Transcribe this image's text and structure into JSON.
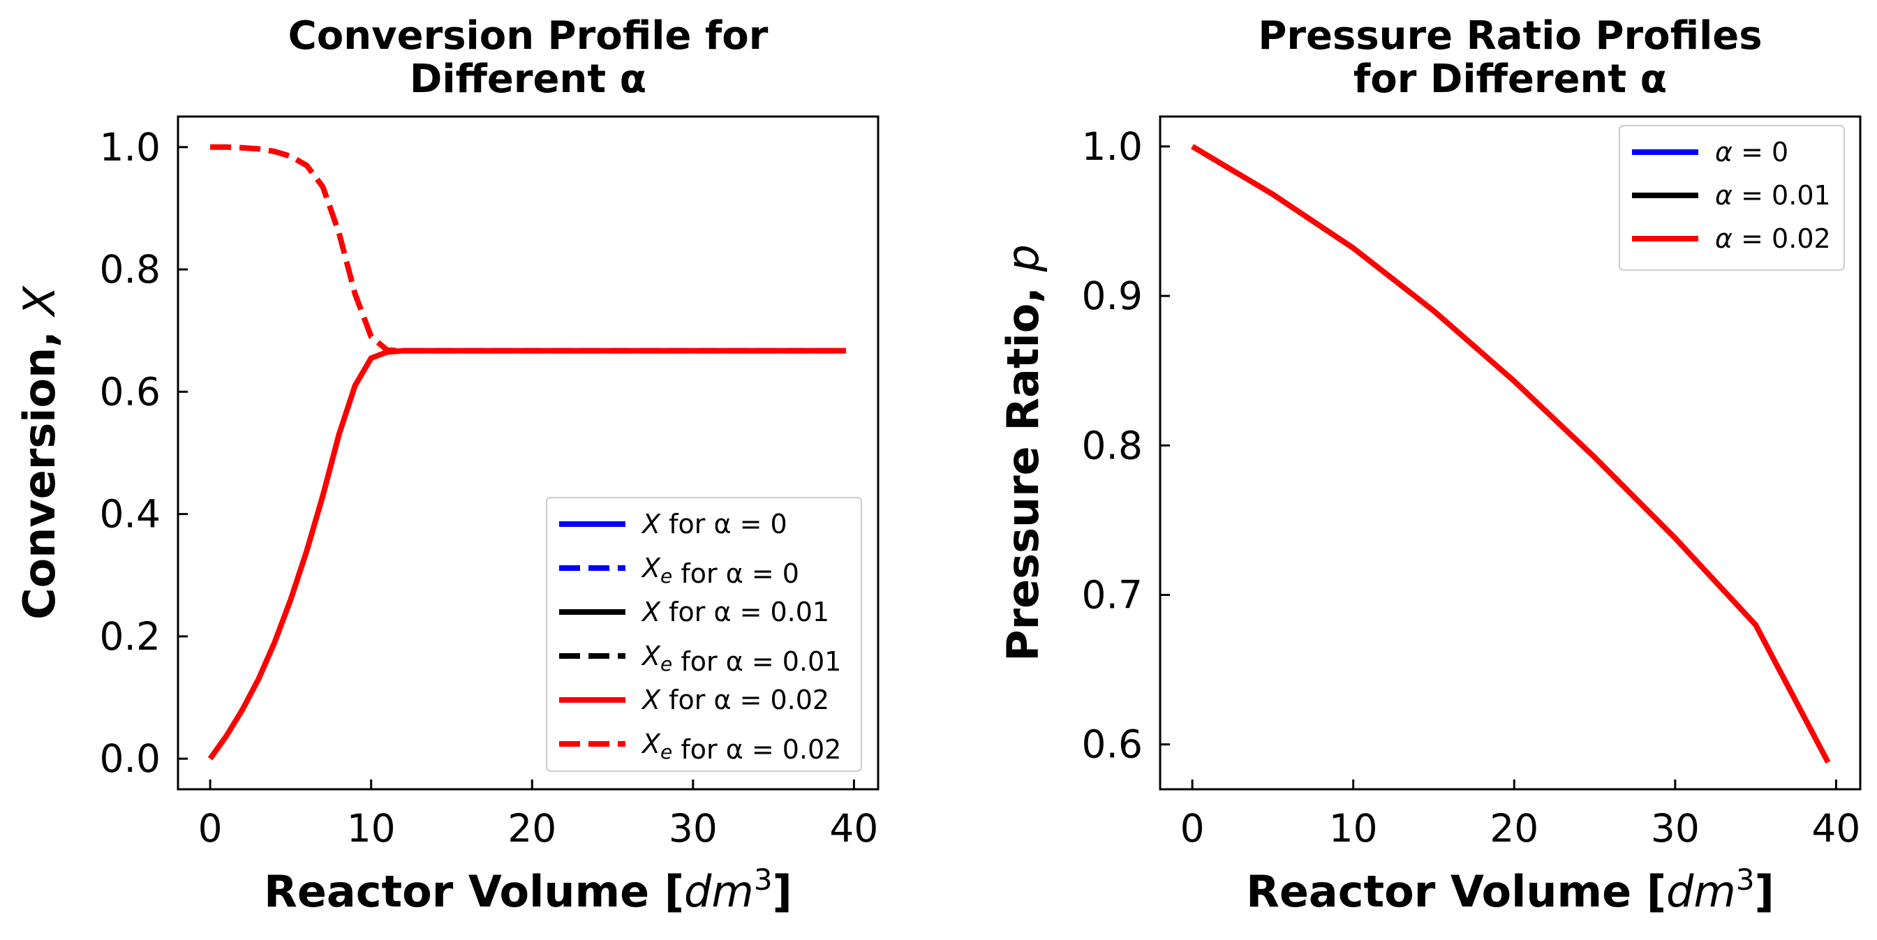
{
  "figure": {
    "background": "#ffffff"
  },
  "chart_data": [
    {
      "type": "line",
      "title": [
        "Conversion Profile for",
        "Different α"
      ],
      "xlabel": "Reactor Volume [dm³]",
      "ylabel": "Conversion, X",
      "xlim": [
        -2,
        41.5
      ],
      "ylim": [
        -0.05,
        1.05
      ],
      "xticks": [
        0,
        10,
        20,
        30,
        40
      ],
      "yticks": [
        0.0,
        0.2,
        0.4,
        0.6,
        0.8,
        1.0
      ],
      "grid": false,
      "legend_position": "lower-right",
      "series": [
        {
          "name": "X for α = 0",
          "color": "#0000ff",
          "style": "solid",
          "legend_only": true
        },
        {
          "name": "Xe for α = 0",
          "color": "#0000ff",
          "style": "dashed",
          "legend_only": true
        },
        {
          "name": "X for α = 0.01",
          "color": "#000000",
          "style": "solid",
          "legend_only": true
        },
        {
          "name": "Xe for α = 0.01",
          "color": "#000000",
          "style": "dashed",
          "legend_only": true
        },
        {
          "name": "X for α = 0.02",
          "color": "#ff0000",
          "style": "solid",
          "x": [
            0,
            1,
            2,
            3,
            4,
            5,
            6,
            7,
            8,
            9,
            10,
            11,
            12,
            14,
            20,
            30,
            39.5
          ],
          "y": [
            0.0,
            0.037,
            0.08,
            0.13,
            0.19,
            0.26,
            0.34,
            0.43,
            0.53,
            0.61,
            0.655,
            0.665,
            0.667,
            0.667,
            0.667,
            0.667,
            0.667
          ]
        },
        {
          "name": "Xe for α = 0.02",
          "color": "#ff0000",
          "style": "dashed",
          "x": [
            0,
            1,
            2,
            3,
            4,
            5,
            6,
            7,
            8,
            9,
            10,
            11,
            12,
            14,
            20,
            30,
            39.5
          ],
          "y": [
            1.0,
            1.0,
            0.999,
            0.997,
            0.993,
            0.985,
            0.97,
            0.935,
            0.86,
            0.76,
            0.69,
            0.668,
            0.667,
            0.667,
            0.667,
            0.667,
            0.667
          ]
        }
      ]
    },
    {
      "type": "line",
      "title": [
        "Pressure Ratio Profiles",
        "for Different α"
      ],
      "xlabel": "Reactor Volume [dm³]",
      "ylabel": "Pressure Ratio, p",
      "xlim": [
        -2,
        41.5
      ],
      "ylim": [
        0.57,
        1.02
      ],
      "xticks": [
        0,
        10,
        20,
        30,
        40
      ],
      "yticks": [
        0.6,
        0.7,
        0.8,
        0.9,
        1.0
      ],
      "grid": false,
      "legend_position": "upper-right",
      "series": [
        {
          "name": "α = 0",
          "color": "#0000ff",
          "style": "solid",
          "legend_only": true
        },
        {
          "name": "α = 0.01",
          "color": "#000000",
          "style": "solid",
          "legend_only": true
        },
        {
          "name": "α = 0.02",
          "color": "#ff0000",
          "style": "solid",
          "x": [
            0,
            5,
            10,
            15,
            20,
            25,
            30,
            35,
            39.5
          ],
          "y": [
            1.0,
            0.968,
            0.932,
            0.89,
            0.843,
            0.792,
            0.738,
            0.68,
            0.588
          ]
        }
      ]
    }
  ]
}
